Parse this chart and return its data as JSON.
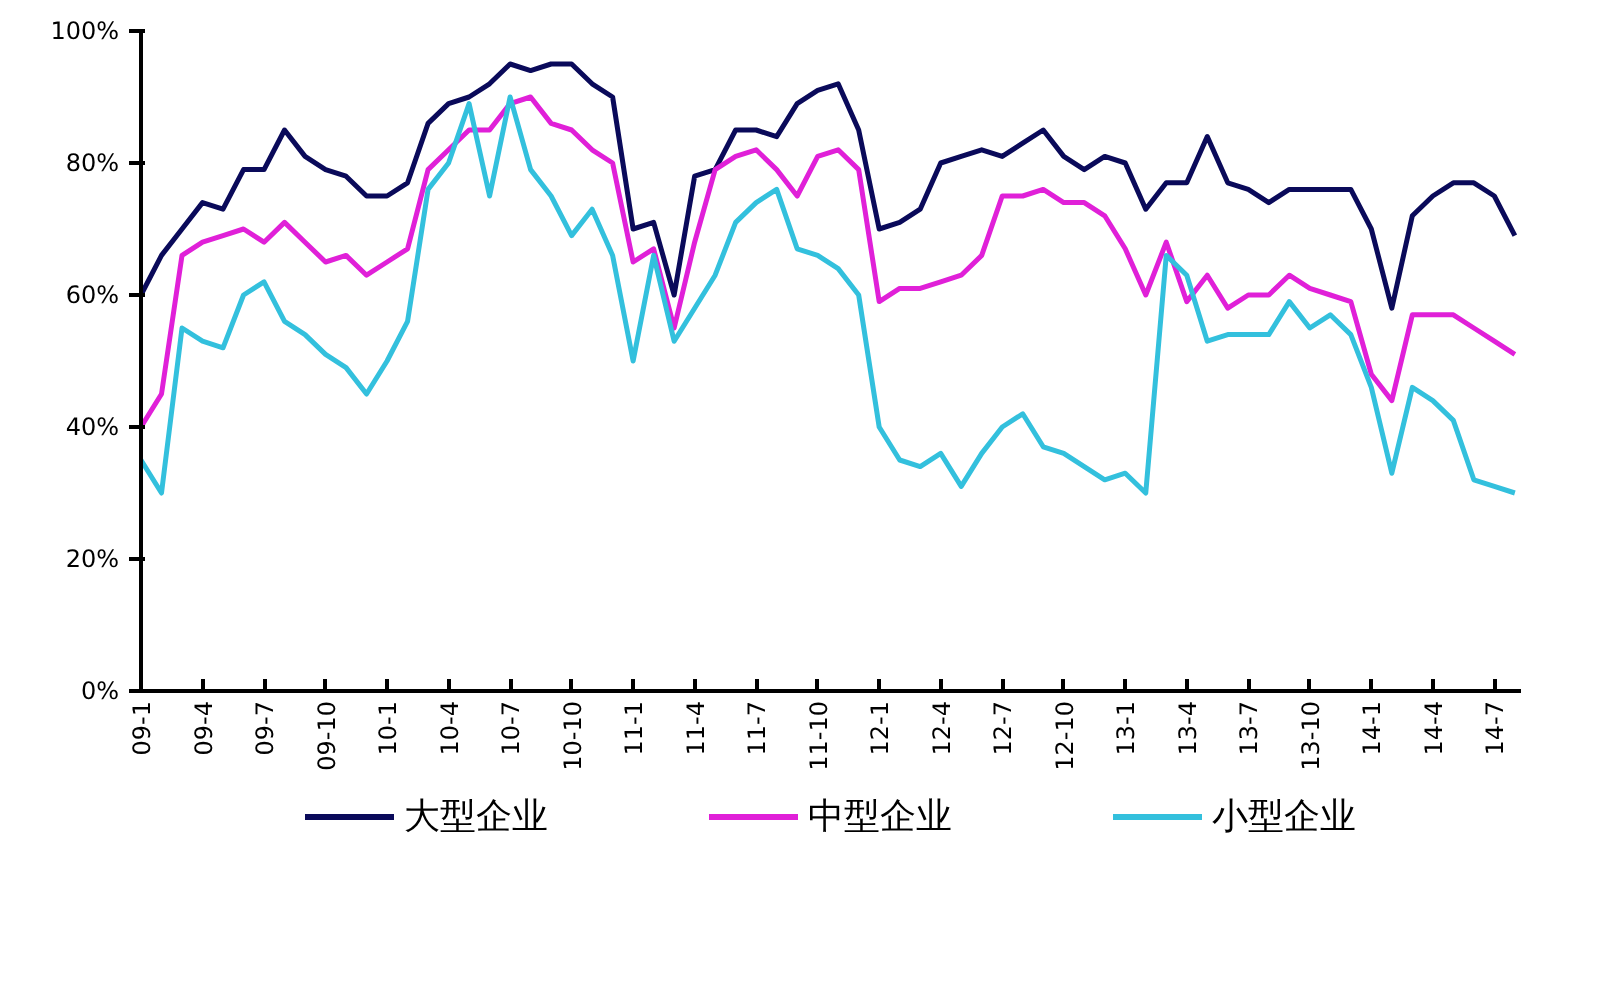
{
  "chart_data": {
    "type": "line",
    "categories": [
      "09-1",
      null,
      null,
      "09-4",
      null,
      null,
      "09-7",
      null,
      null,
      "09-10",
      null,
      null,
      "10-1",
      null,
      null,
      "10-4",
      null,
      null,
      "10-7",
      null,
      null,
      "10-10",
      null,
      null,
      "11-1",
      null,
      null,
      "11-4",
      null,
      null,
      "11-7",
      null,
      null,
      "11-10",
      null,
      null,
      "12-1",
      null,
      null,
      "12-4",
      null,
      null,
      "12-7",
      null,
      null,
      "12-10",
      null,
      null,
      "13-1",
      null,
      null,
      "13-4",
      null,
      null,
      "13-7",
      null,
      null,
      "13-10",
      null,
      null,
      "14-1",
      null,
      null,
      "14-4",
      null,
      null,
      "14-7",
      null
    ],
    "series": [
      {
        "name": "大型企业",
        "color": "#0a0a5a",
        "values": [
          60,
          66,
          70,
          74,
          73,
          79,
          79,
          85,
          81,
          79,
          78,
          75,
          75,
          77,
          86,
          89,
          90,
          92,
          95,
          94,
          95,
          95,
          92,
          90,
          70,
          71,
          60,
          78,
          79,
          85,
          85,
          84,
          89,
          91,
          92,
          85,
          70,
          71,
          73,
          80,
          81,
          82,
          81,
          83,
          85,
          81,
          79,
          81,
          80,
          73,
          77,
          77,
          84,
          77,
          76,
          74,
          76,
          76,
          76,
          76,
          70,
          58,
          72,
          75,
          77,
          77,
          75,
          69
        ]
      },
      {
        "name": "中型企业",
        "color": "#e020d8",
        "values": [
          40,
          45,
          66,
          68,
          69,
          70,
          68,
          71,
          68,
          65,
          66,
          63,
          65,
          67,
          79,
          82,
          85,
          85,
          89,
          90,
          86,
          85,
          82,
          80,
          65,
          67,
          55,
          68,
          79,
          81,
          82,
          79,
          75,
          81,
          82,
          79,
          59,
          61,
          61,
          62,
          63,
          66,
          75,
          75,
          76,
          74,
          74,
          72,
          67,
          60,
          68,
          59,
          63,
          58,
          60,
          60,
          63,
          61,
          60,
          59,
          48,
          44,
          57,
          57,
          57,
          55,
          53,
          51
        ]
      },
      {
        "name": "小型企业",
        "color": "#33c0dd",
        "values": [
          35,
          30,
          55,
          53,
          52,
          60,
          62,
          56,
          54,
          51,
          49,
          45,
          50,
          56,
          76,
          80,
          89,
          75,
          90,
          79,
          75,
          69,
          73,
          66,
          50,
          66,
          53,
          58,
          63,
          71,
          74,
          76,
          67,
          66,
          64,
          60,
          40,
          35,
          34,
          36,
          31,
          36,
          40,
          42,
          37,
          36,
          34,
          32,
          33,
          30,
          66,
          63,
          53,
          54,
          54,
          54,
          59,
          55,
          57,
          54,
          46,
          33,
          46,
          44,
          41,
          32,
          31,
          30
        ]
      }
    ],
    "ylim": [
      0,
      100
    ],
    "yticks": [
      {
        "value": 0,
        "label": "0%"
      },
      {
        "value": 20,
        "label": "20%"
      },
      {
        "value": 40,
        "label": "40%"
      },
      {
        "value": 60,
        "label": "60%"
      },
      {
        "value": 80,
        "label": "80%"
      },
      {
        "value": 100,
        "label": "100%"
      }
    ],
    "legend": "bottom",
    "grid": false,
    "marker": "none",
    "line_style": "solid"
  }
}
